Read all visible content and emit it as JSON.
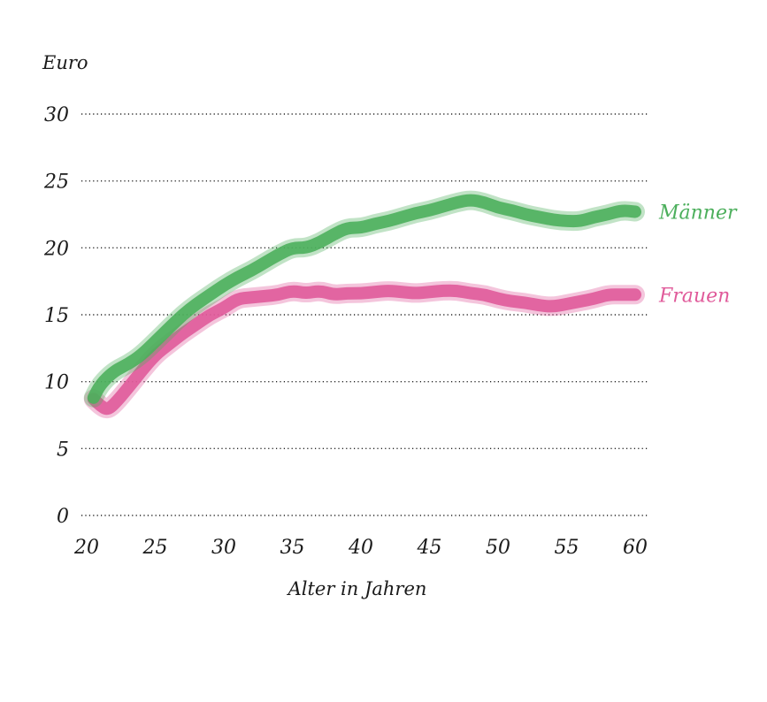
{
  "chart_data": {
    "type": "line",
    "ylabel": "Euro",
    "xlabel": "Alter in Jahren",
    "xlim": [
      20,
      60
    ],
    "ylim": [
      0,
      30
    ],
    "xticks": [
      20,
      25,
      30,
      35,
      40,
      45,
      50,
      55,
      60
    ],
    "yticks": [
      0,
      5,
      10,
      15,
      20,
      25,
      30
    ],
    "grid": "horizontal dotted",
    "legend": "inline at line ends",
    "series": [
      {
        "name": "Männer",
        "color": "#4caf5c",
        "x": [
          20.5,
          21,
          22,
          23,
          24,
          25,
          26,
          27,
          28,
          29,
          30,
          31,
          32,
          33,
          34,
          35,
          36,
          37,
          38,
          39,
          40,
          41,
          42,
          43,
          44,
          45,
          46,
          47,
          48,
          49,
          50,
          51,
          52,
          53,
          54,
          55,
          56,
          57,
          58,
          59,
          60
        ],
        "values": [
          8.8,
          9.8,
          10.8,
          11.3,
          12.0,
          13.0,
          14.0,
          15.0,
          15.8,
          16.5,
          17.2,
          17.8,
          18.3,
          18.9,
          19.5,
          20.0,
          20.0,
          20.4,
          21.0,
          21.5,
          21.5,
          21.8,
          22.0,
          22.3,
          22.6,
          22.8,
          23.1,
          23.4,
          23.6,
          23.4,
          23.0,
          22.8,
          22.5,
          22.3,
          22.1,
          22.0,
          22.0,
          22.3,
          22.5,
          22.8,
          22.7
        ]
      },
      {
        "name": "Frauen",
        "color": "#e05a9a",
        "x": [
          20.5,
          21,
          21.5,
          22,
          23,
          24,
          25,
          26,
          27,
          28,
          29,
          30,
          31,
          32,
          33,
          34,
          35,
          36,
          37,
          38,
          39,
          40,
          41,
          42,
          43,
          44,
          45,
          46,
          47,
          48,
          49,
          50,
          51,
          52,
          53,
          54,
          55,
          56,
          57,
          58,
          59,
          60
        ],
        "values": [
          8.7,
          8.2,
          7.9,
          8.3,
          9.5,
          10.8,
          12.0,
          12.8,
          13.6,
          14.3,
          15.0,
          15.5,
          16.2,
          16.3,
          16.4,
          16.5,
          16.8,
          16.6,
          16.8,
          16.5,
          16.6,
          16.6,
          16.7,
          16.8,
          16.7,
          16.6,
          16.7,
          16.8,
          16.8,
          16.6,
          16.5,
          16.2,
          16.0,
          15.9,
          15.7,
          15.6,
          15.8,
          16.0,
          16.2,
          16.5,
          16.5,
          16.5
        ]
      }
    ]
  }
}
